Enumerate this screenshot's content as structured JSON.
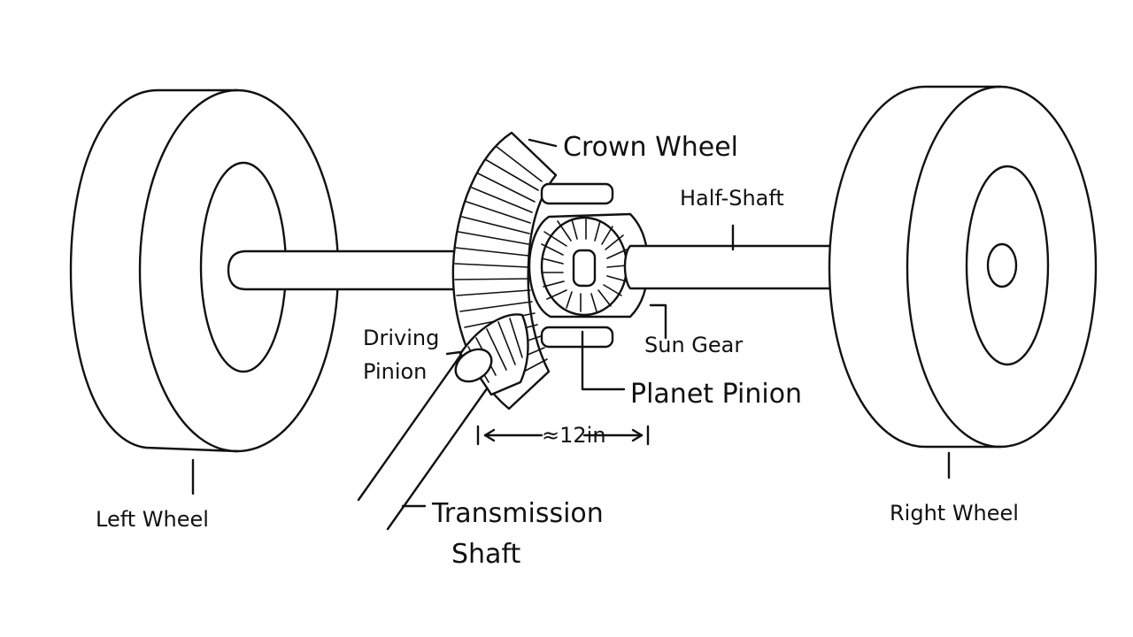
{
  "labels": {
    "crown_wheel": "Crown Wheel",
    "half_shaft": "Half-Shaft",
    "driving_pinion_1": "Driving",
    "driving_pinion_2": "Pinion",
    "sun_gear": "Sun Gear",
    "planet_pinion": "Planet Pinion",
    "dimension": "|← ≈12in →|",
    "left_wheel": "Left Wheel",
    "right_wheel": "Right Wheel",
    "transmission_1": "Transmission",
    "transmission_2": "Shaft"
  },
  "colors": {
    "line": "#111111",
    "background": "#ffffff"
  }
}
